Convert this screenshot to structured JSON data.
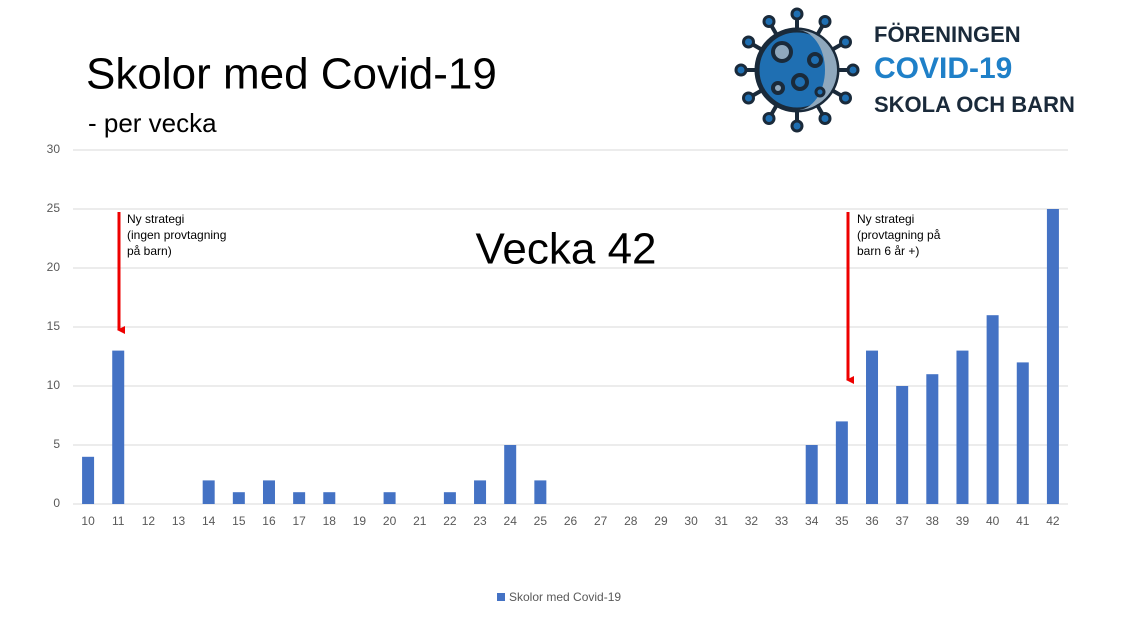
{
  "chart_data": {
    "type": "bar",
    "title": "Skolor med Covid-19",
    "subtitle": "- per vecka",
    "overlay_text": "Vecka 42",
    "annotations": [
      {
        "lines": [
          "Ny strategi",
          "(ingen provtagning",
          "på barn)"
        ]
      },
      {
        "lines": [
          "Ny strategi",
          "(provtagning på",
          "barn 6 år +)"
        ]
      }
    ],
    "categories": [
      "10",
      "11",
      "12",
      "13",
      "14",
      "15",
      "16",
      "17",
      "18",
      "19",
      "20",
      "21",
      "22",
      "23",
      "24",
      "25",
      "26",
      "27",
      "28",
      "29",
      "30",
      "31",
      "32",
      "33",
      "34",
      "35",
      "36",
      "37",
      "38",
      "39",
      "40",
      "41",
      "42"
    ],
    "series": [
      {
        "name": "Skolor med Covid-19",
        "color": "#4472c4",
        "values": [
          4,
          13,
          0,
          0,
          2,
          1,
          2,
          1,
          1,
          0,
          1,
          0,
          1,
          2,
          5,
          2,
          0,
          0,
          0,
          0,
          0,
          0,
          0,
          0,
          5,
          7,
          13,
          10,
          11,
          13,
          16,
          12,
          25
        ]
      }
    ],
    "ylim": [
      0,
      30
    ],
    "yticks": [
      0,
      5,
      10,
      15,
      20,
      25,
      30
    ],
    "grid": true,
    "legend": "bottom"
  },
  "logo": {
    "lines": [
      "FÖRENINGEN",
      "COVID-19",
      "SKOLA OCH BARN"
    ]
  }
}
